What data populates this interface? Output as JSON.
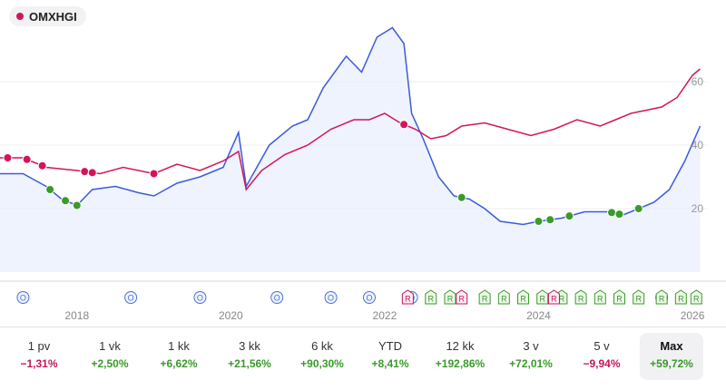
{
  "legend": {
    "label": "OMXHGI",
    "color": "#d4145a"
  },
  "chart_data": {
    "type": "line",
    "x_ticks": [
      "2018",
      "2020",
      "2022",
      "2024",
      "2026"
    ],
    "y_ticks": [
      "20",
      "40",
      "60"
    ],
    "ylim": [
      0,
      80
    ],
    "xlim": [
      2017.0,
      2026.2
    ],
    "grid": true,
    "series": [
      {
        "name": "OMXHGI",
        "color": "#d4145a",
        "points": [
          [
            2017.0,
            36
          ],
          [
            2017.3,
            36
          ],
          [
            2017.6,
            33
          ],
          [
            2018.0,
            32
          ],
          [
            2018.3,
            31
          ],
          [
            2018.6,
            33
          ],
          [
            2019.0,
            31
          ],
          [
            2019.3,
            34
          ],
          [
            2019.6,
            32
          ],
          [
            2019.9,
            35
          ],
          [
            2020.1,
            38
          ],
          [
            2020.2,
            26
          ],
          [
            2020.4,
            32
          ],
          [
            2020.7,
            37
          ],
          [
            2021.0,
            40
          ],
          [
            2021.3,
            45
          ],
          [
            2021.6,
            48
          ],
          [
            2021.8,
            48
          ],
          [
            2022.0,
            50
          ],
          [
            2022.2,
            47
          ],
          [
            2022.4,
            45
          ],
          [
            2022.6,
            42
          ],
          [
            2022.8,
            43
          ],
          [
            2023.0,
            46
          ],
          [
            2023.3,
            47
          ],
          [
            2023.6,
            45
          ],
          [
            2023.9,
            43
          ],
          [
            2024.2,
            45
          ],
          [
            2024.5,
            48
          ],
          [
            2024.8,
            46
          ],
          [
            2025.0,
            48
          ],
          [
            2025.2,
            50
          ],
          [
            2025.4,
            51
          ],
          [
            2025.6,
            52
          ],
          [
            2025.8,
            55
          ],
          [
            2026.0,
            62
          ],
          [
            2026.1,
            64
          ]
        ]
      },
      {
        "name": "",
        "color": "#3b5bdb",
        "fill": "#e8eefc",
        "points": [
          [
            2017.0,
            31
          ],
          [
            2017.3,
            31
          ],
          [
            2017.6,
            27
          ],
          [
            2017.8,
            23
          ],
          [
            2018.0,
            21
          ],
          [
            2018.2,
            26
          ],
          [
            2018.5,
            27
          ],
          [
            2018.8,
            25
          ],
          [
            2019.0,
            24
          ],
          [
            2019.3,
            28
          ],
          [
            2019.6,
            30
          ],
          [
            2019.9,
            33
          ],
          [
            2020.1,
            44
          ],
          [
            2020.2,
            27
          ],
          [
            2020.5,
            40
          ],
          [
            2020.8,
            46
          ],
          [
            2021.0,
            48
          ],
          [
            2021.2,
            58
          ],
          [
            2021.5,
            68
          ],
          [
            2021.7,
            63
          ],
          [
            2021.9,
            74
          ],
          [
            2022.1,
            77
          ],
          [
            2022.25,
            72
          ],
          [
            2022.35,
            50
          ],
          [
            2022.5,
            42
          ],
          [
            2022.7,
            30
          ],
          [
            2022.9,
            24
          ],
          [
            2023.1,
            23
          ],
          [
            2023.3,
            20
          ],
          [
            2023.5,
            16
          ],
          [
            2023.8,
            15
          ],
          [
            2024.0,
            16
          ],
          [
            2024.3,
            17
          ],
          [
            2024.6,
            19
          ],
          [
            2024.9,
            19
          ],
          [
            2025.1,
            18
          ],
          [
            2025.3,
            20
          ],
          [
            2025.5,
            22
          ],
          [
            2025.7,
            26
          ],
          [
            2025.9,
            35
          ],
          [
            2026.1,
            46
          ]
        ]
      }
    ],
    "dividend_markers_red": [
      2017.1,
      2017.35,
      2017.55,
      2018.1,
      2018.2,
      2019.0,
      2022.25
    ],
    "dividend_markers_green": [
      2017.65,
      2017.85,
      2018.0,
      2023.0,
      2024.0,
      2024.15,
      2024.4,
      2024.95,
      2025.05,
      2025.3
    ],
    "events_blue": [
      2017.3,
      2018.7,
      2019.6,
      2020.6,
      2021.3,
      2021.8,
      2022.35,
      2025.6
    ],
    "events_green_R": [
      2022.6,
      2022.85,
      2023.3,
      2023.55,
      2023.8,
      2024.05,
      2024.3,
      2024.55,
      2024.8,
      2025.05,
      2025.3,
      2025.6,
      2025.85,
      2026.05
    ],
    "events_pink_R": [
      2022.3,
      2023.0,
      2024.2
    ]
  },
  "periods": [
    {
      "label": "1 pv",
      "change": "−1,31%",
      "dir": "neg"
    },
    {
      "label": "1 vk",
      "change": "+2,50%",
      "dir": "pos"
    },
    {
      "label": "1 kk",
      "change": "+6,62%",
      "dir": "pos"
    },
    {
      "label": "3 kk",
      "change": "+21,56%",
      "dir": "pos"
    },
    {
      "label": "6 kk",
      "change": "+90,30%",
      "dir": "pos"
    },
    {
      "label": "YTD",
      "change": "+8,41%",
      "dir": "pos"
    },
    {
      "label": "12 kk",
      "change": "+192,86%",
      "dir": "pos"
    },
    {
      "label": "3 v",
      "change": "+72,01%",
      "dir": "pos"
    },
    {
      "label": "5 v",
      "change": "−9,94%",
      "dir": "neg"
    },
    {
      "label": "Max",
      "change": "+59,72%",
      "dir": "pos",
      "selected": true
    }
  ],
  "event_labels": {
    "blue": "O",
    "r": "R"
  }
}
